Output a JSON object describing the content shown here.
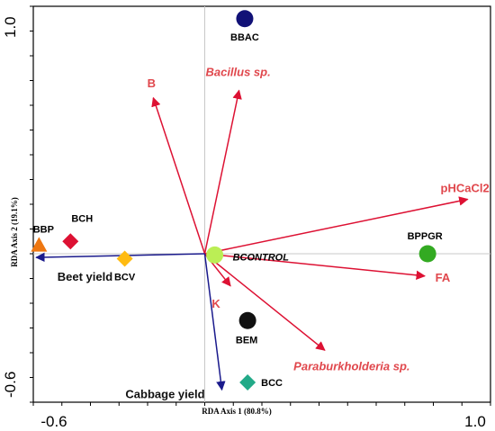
{
  "chart_data": {
    "type": "scatter",
    "subtype": "rda-biplot",
    "xlabel": "RDA Axis 1 (80.8%)",
    "ylabel": "RDA Axis 2 (19.1%)",
    "xlim": [
      -0.6,
      1.0
    ],
    "ylim": [
      -0.6,
      1.0
    ],
    "x_tick_labels": [
      {
        "value": -0.6,
        "label": "-0.6"
      },
      {
        "value": 1.0,
        "label": "1.0"
      }
    ],
    "y_tick_labels": [
      {
        "value": 1.0,
        "label": "1.0"
      },
      {
        "value": -0.6,
        "label": "-0.6"
      }
    ],
    "grid": false,
    "origin_lines": true,
    "sites": [
      {
        "name": "BBAC",
        "x": 0.14,
        "y": 0.95,
        "marker": "circle",
        "color": "#111177"
      },
      {
        "name": "BCH",
        "x": -0.47,
        "y": 0.05,
        "marker": "diamond",
        "color": "#dd1133"
      },
      {
        "name": "BBP",
        "x": -0.58,
        "y": 0.035,
        "marker": "triangle",
        "color": "#ee7711"
      },
      {
        "name": "BCV",
        "x": -0.28,
        "y": -0.02,
        "marker": "diamond",
        "color": "#ffbb11"
      },
      {
        "name": "BCONTROL",
        "x": 0.035,
        "y": -0.005,
        "marker": "circle",
        "color": "#bbee55",
        "italic": true
      },
      {
        "name": "BPPGR",
        "x": 0.78,
        "y": 0.0,
        "marker": "circle",
        "color": "#33aa22"
      },
      {
        "name": "BEM",
        "x": 0.15,
        "y": -0.27,
        "marker": "circle",
        "color": "#111111"
      },
      {
        "name": "BCC",
        "x": 0.15,
        "y": -0.52,
        "marker": "diamond",
        "color": "#22aa88"
      }
    ],
    "env_vectors": [
      {
        "name": "B",
        "x": -0.18,
        "y": 0.63,
        "italic": false
      },
      {
        "name": "Bacillus sp.",
        "x": 0.12,
        "y": 0.66,
        "italic": true
      },
      {
        "name": "pHCaCl2",
        "x": 0.92,
        "y": 0.22,
        "italic": false
      },
      {
        "name": "FA",
        "x": 0.77,
        "y": -0.09,
        "italic": false
      },
      {
        "name": "K",
        "x": 0.09,
        "y": -0.13,
        "italic": false
      },
      {
        "name": "Paraburkholderia sp.",
        "x": 0.42,
        "y": -0.39,
        "italic": true
      }
    ],
    "response_vectors": [
      {
        "name": "Beet yield",
        "x": -0.59,
        "y": -0.015
      },
      {
        "name": "Cabbage yield",
        "x": 0.06,
        "y": -0.55
      }
    ],
    "colors": {
      "env_vector": "#dd1133",
      "response_vector": "#1a1a8c",
      "env_label": "#e0474c",
      "axes": "#000000",
      "origin_lines": "#c8c8c8"
    }
  }
}
